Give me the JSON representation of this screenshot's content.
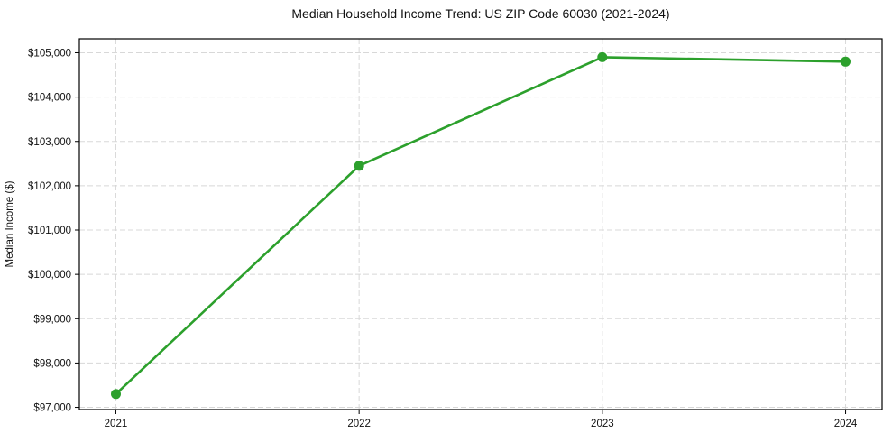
{
  "chart_data": {
    "type": "line",
    "title": "Median Household Income Trend: US ZIP Code 60030 (2021-2024)",
    "xlabel": "",
    "ylabel": "Median Income ($)",
    "categories": [
      "2021",
      "2022",
      "2023",
      "2024"
    ],
    "x": [
      2021,
      2022,
      2023,
      2024
    ],
    "values": [
      97300,
      102450,
      104900,
      104800
    ],
    "xtick_labels": [
      "2021",
      "2022",
      "2023",
      "2024"
    ],
    "yticks": [
      97000,
      98000,
      99000,
      100000,
      101000,
      102000,
      103000,
      104000,
      105000
    ],
    "ytick_labels": [
      "$97,000",
      "$98,000",
      "$99,000",
      "$100,000",
      "$101,000",
      "$102,000",
      "$103,000",
      "$104,000",
      "$105,000"
    ],
    "xlim": [
      2020.85,
      2024.15
    ],
    "ylim": [
      96950,
      105315
    ],
    "grid": true,
    "grid_style": "dashed",
    "legend": "none",
    "marker": "circle",
    "colors": {
      "line": "#2ca02c",
      "marker": "#2ca02c",
      "grid": "#d8d8d8",
      "axis": "#000000",
      "text": "#111111",
      "background": "#ffffff"
    }
  }
}
